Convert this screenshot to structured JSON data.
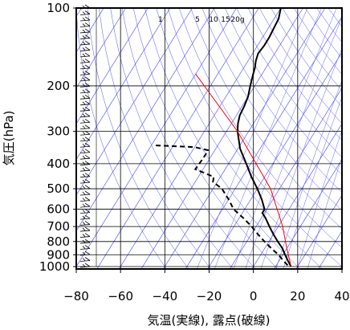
{
  "chart_data": {
    "type": "line",
    "title": "",
    "xlabel": "気温(実線), 露点(破線)",
    "ylabel": "気圧(hPa)",
    "xlim": [
      -80,
      40
    ],
    "ylim": [
      1050,
      100
    ],
    "y_scale": "log",
    "skew": "isotherms skewed",
    "x_ticks": [
      "−80",
      "−60",
      "−40",
      "−20",
      "0",
      "20",
      "40"
    ],
    "y_ticks": [
      "100",
      "200",
      "300",
      "400",
      "500",
      "600",
      "700",
      "800",
      "900",
      "1000"
    ],
    "mixing_ratio_labels": [
      "1",
      "5",
      "10",
      "15",
      "20g"
    ],
    "series": [
      {
        "style": "solid",
        "color": "#000000",
        "points": [
          {
            "p": 100,
            "t": -60
          },
          {
            "p": 110,
            "t": -58
          },
          {
            "p": 120,
            "t": -57.5
          },
          {
            "p": 130,
            "t": -57
          },
          {
            "p": 140,
            "t": -57
          },
          {
            "p": 150,
            "t": -57.5
          },
          {
            "p": 160,
            "t": -56.5
          },
          {
            "p": 170,
            "t": -55
          },
          {
            "p": 180,
            "t": -54
          },
          {
            "p": 190,
            "t": -53
          },
          {
            "p": 200,
            "t": -52
          },
          {
            "p": 210,
            "t": -51
          },
          {
            "p": 220,
            "t": -50
          },
          {
            "p": 240,
            "t": -49
          },
          {
            "p": 260,
            "t": -48.5
          },
          {
            "p": 280,
            "t": -47
          },
          {
            "p": 300,
            "t": -45
          },
          {
            "p": 350,
            "t": -39
          },
          {
            "p": 400,
            "t": -32
          },
          {
            "p": 450,
            "t": -26
          },
          {
            "p": 500,
            "t": -20
          },
          {
            "p": 550,
            "t": -15
          },
          {
            "p": 600,
            "t": -11
          },
          {
            "p": 620,
            "t": -11
          },
          {
            "p": 650,
            "t": -8
          },
          {
            "p": 700,
            "t": -4
          },
          {
            "p": 750,
            "t": 0
          },
          {
            "p": 800,
            "t": 4
          },
          {
            "p": 850,
            "t": 8
          },
          {
            "p": 900,
            "t": 11
          },
          {
            "p": 950,
            "t": 14
          },
          {
            "p": 1000,
            "t": 17
          }
        ]
      },
      {
        "style": "dashed",
        "color": "#000000",
        "points": [
          {
            "p": 340,
            "t": -78
          },
          {
            "p": 345,
            "t": -60
          },
          {
            "p": 355,
            "t": -53
          },
          {
            "p": 380,
            "t": -53
          },
          {
            "p": 420,
            "t": -53.5
          },
          {
            "p": 450,
            "t": -43
          },
          {
            "p": 470,
            "t": -42
          },
          {
            "p": 500,
            "t": -36
          },
          {
            "p": 550,
            "t": -30
          },
          {
            "p": 600,
            "t": -25
          },
          {
            "p": 650,
            "t": -18
          },
          {
            "p": 700,
            "t": -12
          },
          {
            "p": 750,
            "t": -7
          },
          {
            "p": 800,
            "t": -2
          },
          {
            "p": 850,
            "t": 3
          },
          {
            "p": 900,
            "t": 8
          },
          {
            "p": 950,
            "t": 12
          },
          {
            "p": 1000,
            "t": 16
          }
        ]
      },
      {
        "style": "solid",
        "color": "#ff0000",
        "points": [
          {
            "p": 180,
            "t": -80
          },
          {
            "p": 300,
            "t": -45
          },
          {
            "p": 500,
            "t": -14
          },
          {
            "p": 700,
            "t": 2
          },
          {
            "p": 850,
            "t": 10
          },
          {
            "p": 1000,
            "t": 17
          }
        ]
      }
    ],
    "wind_barbs": {
      "position": "left",
      "levels_hpa": [
        100,
        1000
      ],
      "count": 44
    },
    "grid": {
      "color": "#0000ff",
      "horizontal_lines_hpa": [
        100,
        200,
        300,
        400,
        500,
        600,
        700,
        800,
        900,
        1000
      ]
    }
  }
}
